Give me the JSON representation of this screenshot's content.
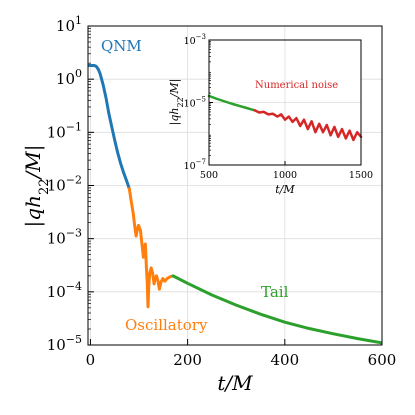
{
  "chart_data": [
    {
      "type": "line",
      "xlabel": "t/M",
      "ylabel": "|qh22/M|",
      "xlim": [
        -5,
        600
      ],
      "ylim_log10": [
        -5,
        1
      ],
      "y_scale": "log",
      "x_ticks": [
        {
          "value": 0,
          "label": "0"
        },
        {
          "value": 200,
          "label": "200"
        },
        {
          "value": 400,
          "label": "400"
        },
        {
          "value": 600,
          "label": "600"
        }
      ],
      "y_ticks": [
        {
          "exp": 1,
          "label": "10",
          "sup": "1"
        },
        {
          "exp": 0,
          "label": "10",
          "sup": "0"
        },
        {
          "exp": -1,
          "label": "10",
          "sup": "−1"
        },
        {
          "exp": -2,
          "label": "10",
          "sup": "−2"
        },
        {
          "exp": -3,
          "label": "10",
          "sup": "−3"
        },
        {
          "exp": -4,
          "label": "10",
          "sup": "−4"
        },
        {
          "exp": -5,
          "label": "10",
          "sup": "−5"
        }
      ],
      "grid": true,
      "series": [
        {
          "name": "QNM",
          "color": "#1f77b4",
          "points": [
            [
              -2,
              0.256
            ],
            [
              8,
              0.256
            ],
            [
              12,
              0.24
            ],
            [
              16,
              0.19
            ],
            [
              20,
              0.1
            ],
            [
              26,
              -0.1
            ],
            [
              32,
              -0.35
            ],
            [
              38,
              -0.65
            ],
            [
              44,
              -0.9
            ],
            [
              50,
              -1.15
            ],
            [
              56,
              -1.38
            ],
            [
              62,
              -1.58
            ],
            [
              68,
              -1.75
            ],
            [
              74,
              -1.9
            ],
            [
              80,
              -2.06
            ]
          ]
        },
        {
          "name": "Oscillatory",
          "color": "#ff7f0e",
          "points": [
            [
              80,
              -2.06
            ],
            [
              84,
              -2.3
            ],
            [
              88,
              -2.52
            ],
            [
              91,
              -2.75
            ],
            [
              94,
              -2.95
            ],
            [
              96,
              -2.85
            ],
            [
              99,
              -2.75
            ],
            [
              103,
              -2.85
            ],
            [
              106,
              -3.1
            ],
            [
              109,
              -3.35
            ],
            [
              111,
              -3.2
            ],
            [
              113,
              -3.1
            ],
            [
              115,
              -3.5
            ],
            [
              117,
              -3.85
            ],
            [
              118.5,
              -4.28
            ],
            [
              120,
              -3.9
            ],
            [
              122,
              -3.65
            ],
            [
              125,
              -3.55
            ],
            [
              128,
              -3.65
            ],
            [
              131,
              -3.85
            ],
            [
              133,
              -3.75
            ],
            [
              136,
              -3.7
            ],
            [
              139,
              -3.8
            ],
            [
              142,
              -3.95
            ],
            [
              145,
              -3.82
            ],
            [
              149,
              -3.75
            ],
            [
              153,
              -3.8
            ],
            [
              158,
              -3.75
            ],
            [
              163,
              -3.72
            ],
            [
              170,
              -3.7
            ]
          ]
        },
        {
          "name": "Tail",
          "color": "#2ca02c",
          "points": [
            [
              170,
              -3.7
            ],
            [
              200,
              -3.84
            ],
            [
              250,
              -4.06
            ],
            [
              300,
              -4.25
            ],
            [
              350,
              -4.42
            ],
            [
              400,
              -4.57
            ],
            [
              450,
              -4.69
            ],
            [
              500,
              -4.79
            ],
            [
              550,
              -4.88
            ],
            [
              600,
              -4.96
            ]
          ]
        }
      ],
      "annotations": [
        "QNM",
        "Oscillatory",
        "Tail"
      ]
    },
    {
      "type": "line",
      "xlabel": "t/M",
      "ylabel": "|qh22/M|",
      "xlim": [
        500,
        1500
      ],
      "ylim_log10": [
        -7,
        -3
      ],
      "y_scale": "log",
      "x_ticks": [
        {
          "value": 500,
          "label": "500"
        },
        {
          "value": 1000,
          "label": "1000"
        },
        {
          "value": 1500,
          "label": "1500"
        }
      ],
      "y_ticks": [
        {
          "exp": -3,
          "label": "10",
          "sup": "−3"
        },
        {
          "exp": -5,
          "label": "10",
          "sup": "−5"
        },
        {
          "exp": -7,
          "label": "10",
          "sup": "−7"
        }
      ],
      "grid": true,
      "series": [
        {
          "name": "tail",
          "color": "#2ca02c",
          "points": [
            [
              500,
              -4.79
            ],
            [
              550,
              -4.88
            ],
            [
              600,
              -4.96
            ],
            [
              650,
              -5.04
            ],
            [
              700,
              -5.11
            ],
            [
              750,
              -5.18
            ],
            [
              800,
              -5.25
            ]
          ]
        },
        {
          "name": "Numerical noise",
          "color": "#d62728",
          "points": [
            [
              800,
              -5.25
            ],
            [
              830,
              -5.32
            ],
            [
              860,
              -5.3
            ],
            [
              890,
              -5.38
            ],
            [
              920,
              -5.36
            ],
            [
              950,
              -5.45
            ],
            [
              975,
              -5.38
            ],
            [
              1000,
              -5.55
            ],
            [
              1025,
              -5.45
            ],
            [
              1050,
              -5.62
            ],
            [
              1075,
              -5.5
            ],
            [
              1100,
              -5.75
            ],
            [
              1125,
              -5.55
            ],
            [
              1150,
              -5.85
            ],
            [
              1175,
              -5.6
            ],
            [
              1200,
              -5.95
            ],
            [
              1225,
              -5.68
            ],
            [
              1250,
              -5.95
            ],
            [
              1275,
              -5.72
            ],
            [
              1300,
              -6.05
            ],
            [
              1325,
              -5.78
            ],
            [
              1350,
              -6.1
            ],
            [
              1375,
              -5.85
            ],
            [
              1400,
              -6.15
            ],
            [
              1425,
              -5.9
            ],
            [
              1450,
              -6.2
            ],
            [
              1475,
              -5.95
            ],
            [
              1500,
              -6.1
            ]
          ]
        }
      ],
      "annotations": [
        "Numerical noise"
      ]
    }
  ]
}
